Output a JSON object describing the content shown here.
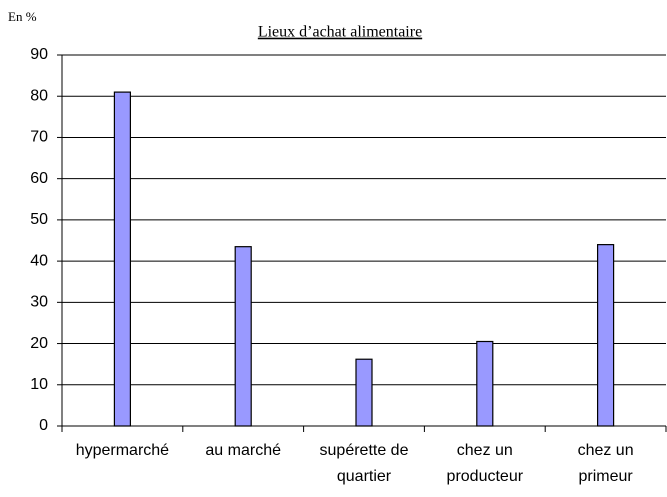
{
  "chart_data": {
    "type": "bar",
    "title": "Lieux d’achat alimentaire",
    "y_label": "En  %",
    "categories": [
      "hypermarché",
      "au marché",
      "supérette de quartier",
      "chez un producteur",
      "chez un primeur"
    ],
    "values": [
      81,
      43.5,
      16.2,
      20.5,
      44
    ],
    "color": "#9999ff",
    "ylim": [
      0,
      90
    ],
    "yticks": [
      0,
      10,
      20,
      30,
      40,
      50,
      60,
      70,
      80,
      90
    ],
    "grid": true
  }
}
